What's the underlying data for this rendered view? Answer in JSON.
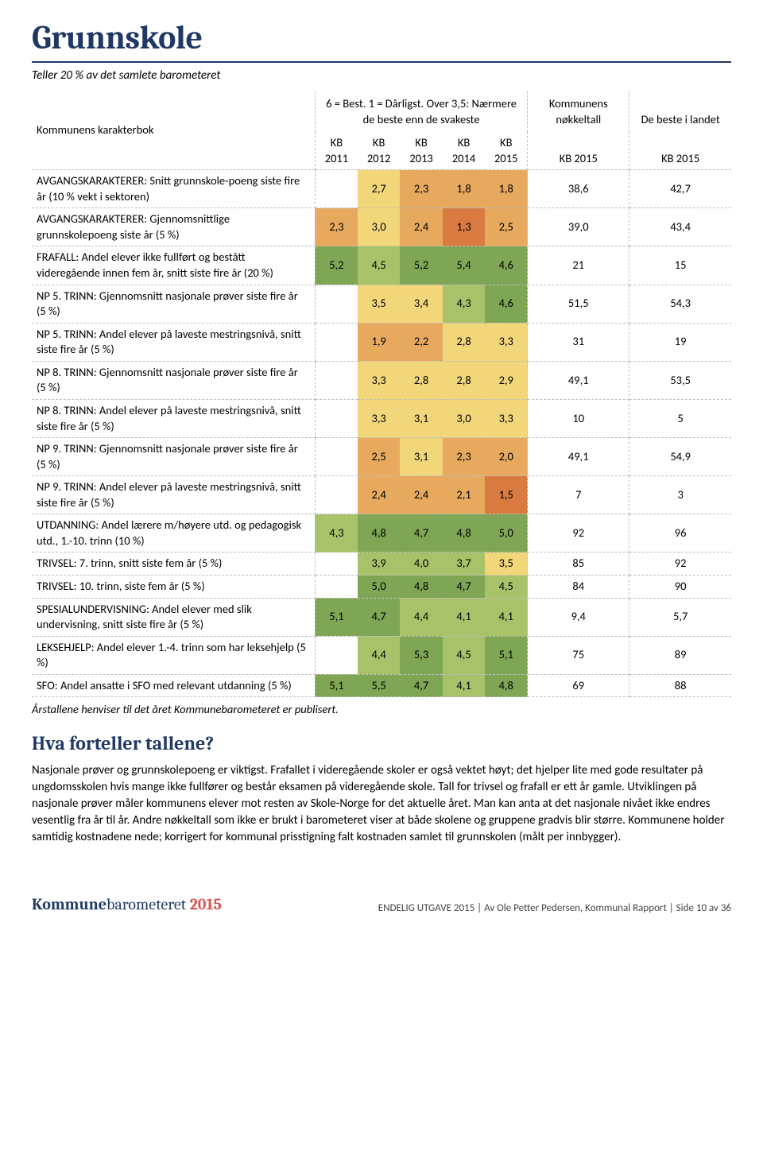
{
  "heading": "Grunnskole",
  "subtitle": "Teller 20 % av det samlete barometeret",
  "table": {
    "label_header": "Kommunens karakterbok",
    "scale_header": "6 = Best. 1 = Dårligst. Over 3,5: Nærmere de beste enn de svakeste",
    "group_nokkel": "Kommunens nøkkeltall",
    "group_beste": "De beste i landet",
    "year_cols": [
      "KB 2011",
      "KB 2012",
      "KB 2013",
      "KB 2014",
      "KB 2015"
    ],
    "extra_cols": [
      "KB 2015",
      "KB 2015"
    ],
    "colors": {
      "1": "#d97b41",
      "2": "#e6a95e",
      "3": "#f2d77a",
      "4": "#a8c26a",
      "5": "#7fa654",
      "6": "#4f853e"
    },
    "rows": [
      {
        "label": "AVGANGSKARAKTERER: Snitt grunnskole-poeng siste fire år (10 % vekt i sektoren)",
        "cells": [
          {
            "v": "",
            "c": ""
          },
          {
            "v": "2,7",
            "c": "3"
          },
          {
            "v": "2,3",
            "c": "2"
          },
          {
            "v": "1,8",
            "c": "2"
          },
          {
            "v": "1,8",
            "c": "2"
          }
        ],
        "e": [
          "38,6",
          "42,7"
        ]
      },
      {
        "label": "AVGANGSKARAKTERER: Gjennomsnittlige grunnskolepoeng siste år (5 %)",
        "cells": [
          {
            "v": "2,3",
            "c": "2"
          },
          {
            "v": "3,0",
            "c": "3"
          },
          {
            "v": "2,4",
            "c": "2"
          },
          {
            "v": "1,3",
            "c": "1"
          },
          {
            "v": "2,5",
            "c": "2"
          }
        ],
        "e": [
          "39,0",
          "43,4"
        ]
      },
      {
        "label": "FRAFALL: Andel elever ikke fullført og bestått videregående innen fem år, snitt siste fire år (20 %)",
        "cells": [
          {
            "v": "5,2",
            "c": "5"
          },
          {
            "v": "4,5",
            "c": "4"
          },
          {
            "v": "5,2",
            "c": "5"
          },
          {
            "v": "5,4",
            "c": "5"
          },
          {
            "v": "4,6",
            "c": "5"
          }
        ],
        "e": [
          "21",
          "15"
        ]
      },
      {
        "label": "NP 5. TRINN: Gjennomsnitt nasjonale prøver siste fire år (5 %)",
        "cells": [
          {
            "v": "",
            "c": ""
          },
          {
            "v": "3,5",
            "c": "3"
          },
          {
            "v": "3,4",
            "c": "3"
          },
          {
            "v": "4,3",
            "c": "4"
          },
          {
            "v": "4,6",
            "c": "5"
          }
        ],
        "e": [
          "51,5",
          "54,3"
        ]
      },
      {
        "label": "NP 5. TRINN: Andel elever på laveste mestringsnivå, snitt siste fire år (5 %)",
        "cells": [
          {
            "v": "",
            "c": ""
          },
          {
            "v": "1,9",
            "c": "2"
          },
          {
            "v": "2,2",
            "c": "2"
          },
          {
            "v": "2,8",
            "c": "3"
          },
          {
            "v": "3,3",
            "c": "3"
          }
        ],
        "e": [
          "31",
          "19"
        ]
      },
      {
        "label": "NP 8. TRINN: Gjennomsnitt nasjonale prøver siste fire år (5 %)",
        "cells": [
          {
            "v": "",
            "c": ""
          },
          {
            "v": "3,3",
            "c": "3"
          },
          {
            "v": "2,8",
            "c": "3"
          },
          {
            "v": "2,8",
            "c": "3"
          },
          {
            "v": "2,9",
            "c": "3"
          }
        ],
        "e": [
          "49,1",
          "53,5"
        ]
      },
      {
        "label": "NP 8. TRINN: Andel elever på laveste mestringsnivå, snitt siste fire år (5 %)",
        "cells": [
          {
            "v": "",
            "c": ""
          },
          {
            "v": "3,3",
            "c": "3"
          },
          {
            "v": "3,1",
            "c": "3"
          },
          {
            "v": "3,0",
            "c": "3"
          },
          {
            "v": "3,3",
            "c": "3"
          }
        ],
        "e": [
          "10",
          "5"
        ]
      },
      {
        "label": "NP 9. TRINN: Gjennomsnitt nasjonale prøver siste fire år (5 %)",
        "cells": [
          {
            "v": "",
            "c": ""
          },
          {
            "v": "2,5",
            "c": "2"
          },
          {
            "v": "3,1",
            "c": "3"
          },
          {
            "v": "2,3",
            "c": "2"
          },
          {
            "v": "2,0",
            "c": "2"
          }
        ],
        "e": [
          "49,1",
          "54,9"
        ]
      },
      {
        "label": "NP 9. TRINN: Andel elever på laveste mestringsnivå, snitt siste fire år (5 %)",
        "cells": [
          {
            "v": "",
            "c": ""
          },
          {
            "v": "2,4",
            "c": "2"
          },
          {
            "v": "2,4",
            "c": "2"
          },
          {
            "v": "2,1",
            "c": "2"
          },
          {
            "v": "1,5",
            "c": "1"
          }
        ],
        "e": [
          "7",
          "3"
        ]
      },
      {
        "label": "UTDANNING: Andel lærere m/høyere utd. og pedagogisk utd., 1.-10. trinn (10 %)",
        "cells": [
          {
            "v": "4,3",
            "c": "4"
          },
          {
            "v": "4,8",
            "c": "5"
          },
          {
            "v": "4,7",
            "c": "5"
          },
          {
            "v": "4,8",
            "c": "5"
          },
          {
            "v": "5,0",
            "c": "5"
          }
        ],
        "e": [
          "92",
          "96"
        ]
      },
      {
        "label": "TRIVSEL: 7. trinn, snitt siste fem år (5 %)",
        "cells": [
          {
            "v": "",
            "c": ""
          },
          {
            "v": "3,9",
            "c": "4"
          },
          {
            "v": "4,0",
            "c": "4"
          },
          {
            "v": "3,7",
            "c": "4"
          },
          {
            "v": "3,5",
            "c": "3"
          }
        ],
        "e": [
          "85",
          "92"
        ]
      },
      {
        "label": "TRIVSEL: 10. trinn, siste fem år (5 %)",
        "cells": [
          {
            "v": "",
            "c": ""
          },
          {
            "v": "5,0",
            "c": "5"
          },
          {
            "v": "4,8",
            "c": "5"
          },
          {
            "v": "4,7",
            "c": "5"
          },
          {
            "v": "4,5",
            "c": "4"
          }
        ],
        "e": [
          "84",
          "90"
        ]
      },
      {
        "label": "SPESIALUNDERVISNING: Andel elever med slik undervisning, snitt siste fire år (5 %)",
        "cells": [
          {
            "v": "5,1",
            "c": "5"
          },
          {
            "v": "4,7",
            "c": "5"
          },
          {
            "v": "4,4",
            "c": "4"
          },
          {
            "v": "4,1",
            "c": "4"
          },
          {
            "v": "4,1",
            "c": "4"
          }
        ],
        "e": [
          "9,4",
          "5,7"
        ]
      },
      {
        "label": "LEKSEHJELP: Andel elever 1.-4. trinn som har leksehjelp (5 %)",
        "cells": [
          {
            "v": "",
            "c": ""
          },
          {
            "v": "4,4",
            "c": "4"
          },
          {
            "v": "5,3",
            "c": "5"
          },
          {
            "v": "4,5",
            "c": "4"
          },
          {
            "v": "5,1",
            "c": "5"
          }
        ],
        "e": [
          "75",
          "89"
        ]
      },
      {
        "label": "SFO: Andel ansatte i SFO med relevant utdanning (5 %)",
        "cells": [
          {
            "v": "5,1",
            "c": "5"
          },
          {
            "v": "5,5",
            "c": "5"
          },
          {
            "v": "4,7",
            "c": "5"
          },
          {
            "v": "4,1",
            "c": "4"
          },
          {
            "v": "4,8",
            "c": "5"
          }
        ],
        "e": [
          "69",
          "88"
        ]
      }
    ]
  },
  "footnote": "Årstallene henviser til det året Kommunebarometeret er publisert.",
  "section_heading": "Hva forteller tallene?",
  "body_text": "Nasjonale prøver og grunnskolepoeng er viktigst. Frafallet i videregående skoler er også vektet høyt; det hjelper lite med gode resultater på ungdomsskolen hvis mange ikke fullfører og består eksamen på videregående skole. Tall for trivsel og frafall er ett år gamle. Utviklingen på nasjonale prøver måler kommunens elever mot resten av Skole-Norge for det aktuelle året. Man kan anta at det nasjonale nivået ikke endres vesentlig fra år til år. Andre nøkkeltall som ikke er brukt i barometeret viser at både skolene og gruppene gradvis blir større. Kommunene holder samtidig kostnadene nede; korrigert for kommunal prisstigning falt kostnaden samlet til grunnskolen (målt per innbygger).",
  "brand": {
    "part1": "Kommune",
    "part2": "barometeret ",
    "year": "2015"
  },
  "pageinfo": "ENDELIG UTGAVE 2015 | Av Ole Petter Pedersen, Kommunal Rapport | Side 10 av 36"
}
